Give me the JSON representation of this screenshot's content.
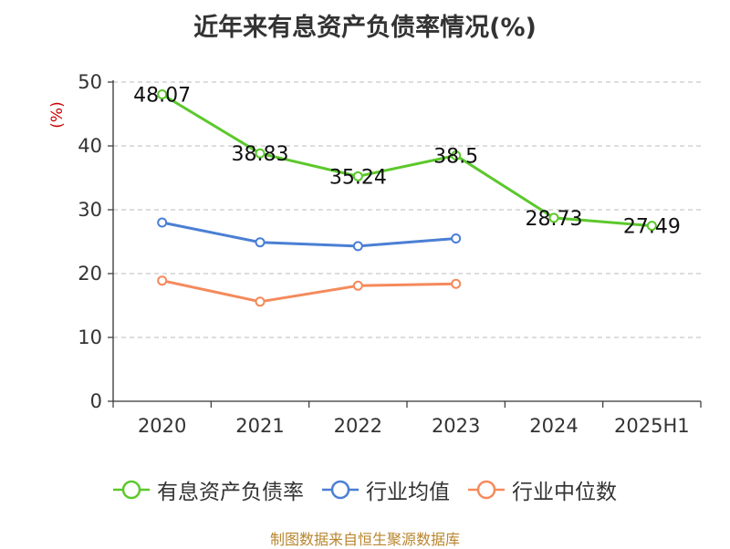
{
  "page": {
    "source_text": "制图数据来自恒生聚源数据库"
  },
  "chart_data": {
    "type": "line",
    "title": "近年来有息资产负债率情况(%)",
    "ylabel": "(%)",
    "xlabel": "",
    "categories": [
      "2020",
      "2021",
      "2022",
      "2023",
      "2024",
      "2025H1"
    ],
    "yticks": [
      "0",
      "10",
      "20",
      "30",
      "40",
      "50"
    ],
    "ylim": [
      0,
      50
    ],
    "grid": true,
    "legend_position": "bottom",
    "series": [
      {
        "name": "有息资产负债率",
        "color": "#5cc82c",
        "values": [
          48.07,
          38.83,
          35.24,
          38.5,
          28.73,
          27.49
        ],
        "labels": [
          "48.07",
          "38.83",
          "35.24",
          "38.5",
          "28.73",
          "27.49"
        ],
        "show_labels": true
      },
      {
        "name": "行业均值",
        "color": "#4a7fd4",
        "values": [
          28.0,
          24.9,
          24.3,
          25.5,
          null,
          null
        ],
        "show_labels": false
      },
      {
        "name": "行业中位数",
        "color": "#f58a5b",
        "values": [
          18.9,
          15.6,
          18.1,
          18.4,
          null,
          null
        ],
        "show_labels": false
      }
    ]
  }
}
